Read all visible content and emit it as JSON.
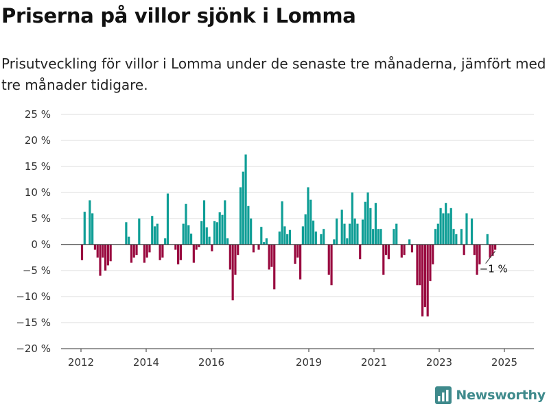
{
  "header": {
    "title": "Priserna på villor sjönk i Lomma",
    "subtitle": "Prisutveckling för villor i Lomma under de senaste tre månaderna, jämfört med tre månader tidigare."
  },
  "brand": {
    "name": "Newsworthy",
    "logo_icon": "bar-chart-logo-icon",
    "color": "#3f8a8c"
  },
  "colors": {
    "positive": "#0f9e96",
    "negative": "#990a3f",
    "grid": "#dddddd",
    "zero_line": "#333333"
  },
  "chart_data": {
    "type": "bar",
    "y_unit": "%",
    "ylim": [
      -20,
      25
    ],
    "y_ticks": [
      25,
      20,
      15,
      10,
      5,
      0,
      -5,
      -10,
      -15,
      -20
    ],
    "y_tick_labels": [
      "25 %",
      "20 %",
      "15 %",
      "10 %",
      "5 %",
      "0 %",
      "−5 %",
      "−10 %",
      "−15 %",
      "−20 %"
    ],
    "x_ticks": [
      "2012",
      "2014",
      "2016",
      "2019",
      "2021",
      "2023",
      "2025"
    ],
    "grid": true,
    "annotation": {
      "text": "−1 %",
      "value": -1
    },
    "values": [
      -3,
      6.3,
      0,
      8.5,
      6,
      -1,
      -2.5,
      -6,
      -2.5,
      -5,
      -4,
      -3.2,
      0,
      0,
      0,
      0,
      0,
      4.3,
      1.5,
      -3.5,
      -2.5,
      -2,
      5,
      0,
      -3.5,
      -2.5,
      -1.5,
      5.5,
      3.5,
      4,
      -3,
      -2.5,
      1.2,
      9.8,
      0,
      0,
      -1,
      -3.8,
      -3,
      4,
      7.8,
      3.7,
      2.1,
      -3.5,
      -1,
      -0.5,
      4.5,
      8.5,
      3.3,
      1.5,
      -1.3,
      4.5,
      4.3,
      6.2,
      5.7,
      8.5,
      1.2,
      -4.8,
      -10.7,
      -5.8,
      -2,
      11,
      14,
      17.3,
      7.4,
      5,
      -1.5,
      0,
      -1,
      3.4,
      0.5,
      1.2,
      -4.8,
      -4.3,
      -8.6,
      0,
      2.5,
      8.3,
      3.5,
      2,
      2.8,
      0,
      -3.7,
      -2.5,
      -6.7,
      3.5,
      5.8,
      11,
      8.6,
      4.6,
      2.5,
      0,
      2,
      3,
      0,
      -5.8,
      -7.8,
      1,
      5,
      0,
      6.7,
      4,
      1.2,
      4,
      10,
      5,
      4,
      -2.8,
      4.8,
      8.2,
      10,
      7,
      3,
      8,
      3,
      3,
      -5.8,
      -2,
      -2.8,
      0,
      3,
      4,
      0,
      -2.5,
      -2,
      0,
      1,
      -1.5,
      0,
      -7.8,
      -7.8,
      -13.8,
      -12,
      -13.8,
      -7,
      -3.8,
      3,
      4,
      7,
      6,
      8,
      6,
      7,
      3,
      2,
      0,
      3,
      -2,
      6,
      0,
      5,
      -2,
      -5.8,
      -3.8,
      0,
      0,
      2,
      -2.5,
      -2.2,
      -1
    ]
  }
}
